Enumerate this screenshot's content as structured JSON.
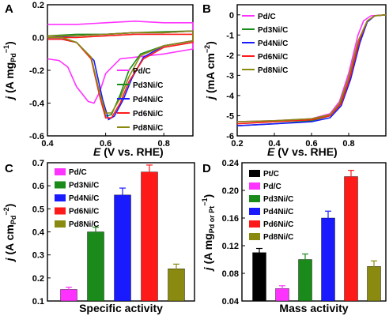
{
  "panels": {
    "a": "A",
    "b": "B",
    "c": "C",
    "d": "D"
  },
  "colors": {
    "Pt/C": "#000000",
    "Pd/C": "#ff33ff",
    "Pd3Ni/C": "#1a8a1a",
    "Pd4Ni/C": "#1a1aff",
    "Pd6Ni/C": "#ff1a1a",
    "Pd8Ni/C": "#8a8a10"
  },
  "chart_data": [
    {
      "id": "A",
      "type": "line",
      "xlabel": "E (V vs. RHE)",
      "ylabel": "j (A mg_Pd^-1)",
      "xlim": [
        0.4,
        0.9
      ],
      "ylim": [
        -0.6,
        0.2
      ],
      "xticks": [
        "0.4",
        "0.6",
        "0.8"
      ],
      "yticks": [
        "-0.6",
        "-0.4",
        "-0.2",
        "0.0",
        "0.2"
      ],
      "legend": [
        "Pd/C",
        "Pd3Ni/C",
        "Pd4Ni/C",
        "Pd6Ni/C",
        "Pd8Ni/C"
      ],
      "legend_position": "lower-right",
      "series": [
        {
          "name": "Pd/C",
          "forward": [
            [
              0.4,
              0.08
            ],
            [
              0.5,
              0.08
            ],
            [
              0.6,
              0.09
            ],
            [
              0.7,
              0.1
            ],
            [
              0.8,
              0.09
            ],
            [
              0.9,
              0.09
            ]
          ],
          "reverse": [
            [
              0.9,
              -0.07
            ],
            [
              0.8,
              -0.1
            ],
            [
              0.7,
              -0.12
            ],
            [
              0.65,
              -0.13
            ],
            [
              0.6,
              -0.22
            ],
            [
              0.58,
              -0.33
            ],
            [
              0.56,
              -0.4
            ],
            [
              0.54,
              -0.39
            ],
            [
              0.5,
              -0.3
            ],
            [
              0.47,
              -0.18
            ],
            [
              0.44,
              -0.14
            ],
            [
              0.4,
              -0.13
            ]
          ]
        },
        {
          "name": "Pd3Ni/C",
          "forward": [
            [
              0.4,
              0.01
            ],
            [
              0.5,
              0.02
            ],
            [
              0.6,
              0.02
            ],
            [
              0.7,
              0.03
            ],
            [
              0.8,
              0.035
            ],
            [
              0.9,
              0.04
            ]
          ],
          "reverse": [
            [
              0.9,
              -0.02
            ],
            [
              0.8,
              -0.05
            ],
            [
              0.72,
              -0.1
            ],
            [
              0.68,
              -0.2
            ],
            [
              0.65,
              -0.35
            ],
            [
              0.62,
              -0.47
            ],
            [
              0.6,
              -0.48
            ],
            [
              0.58,
              -0.35
            ],
            [
              0.55,
              -0.12
            ],
            [
              0.5,
              -0.03
            ],
            [
              0.45,
              0.0
            ],
            [
              0.4,
              0.0
            ]
          ]
        },
        {
          "name": "Pd4Ni/C",
          "forward": [
            [
              0.4,
              0.0
            ],
            [
              0.5,
              0.01
            ],
            [
              0.6,
              0.02
            ],
            [
              0.7,
              0.03
            ],
            [
              0.8,
              0.03
            ],
            [
              0.9,
              0.04
            ]
          ],
          "reverse": [
            [
              0.9,
              -0.02
            ],
            [
              0.8,
              -0.05
            ],
            [
              0.73,
              -0.12
            ],
            [
              0.69,
              -0.25
            ],
            [
              0.66,
              -0.38
            ],
            [
              0.63,
              -0.48
            ],
            [
              0.61,
              -0.5
            ],
            [
              0.59,
              -0.38
            ],
            [
              0.56,
              -0.14
            ],
            [
              0.5,
              -0.03
            ],
            [
              0.45,
              -0.01
            ],
            [
              0.4,
              -0.01
            ]
          ]
        },
        {
          "name": "Pd6Ni/C",
          "forward": [
            [
              0.4,
              0.0
            ],
            [
              0.5,
              0.0
            ],
            [
              0.6,
              0.01
            ],
            [
              0.7,
              0.02
            ],
            [
              0.8,
              0.02
            ],
            [
              0.9,
              0.02
            ]
          ],
          "reverse": [
            [
              0.9,
              -0.03
            ],
            [
              0.8,
              -0.06
            ],
            [
              0.73,
              -0.13
            ],
            [
              0.68,
              -0.27
            ],
            [
              0.65,
              -0.4
            ],
            [
              0.62,
              -0.49
            ],
            [
              0.6,
              -0.49
            ],
            [
              0.58,
              -0.36
            ],
            [
              0.55,
              -0.13
            ],
            [
              0.5,
              -0.03
            ],
            [
              0.45,
              -0.01
            ],
            [
              0.4,
              -0.01
            ]
          ]
        },
        {
          "name": "Pd8Ni/C",
          "forward": [
            [
              0.4,
              0.01
            ],
            [
              0.5,
              0.01
            ],
            [
              0.6,
              0.02
            ],
            [
              0.7,
              0.03
            ],
            [
              0.8,
              0.03
            ],
            [
              0.9,
              0.04
            ]
          ],
          "reverse": [
            [
              0.9,
              -0.02
            ],
            [
              0.8,
              -0.05
            ],
            [
              0.72,
              -0.11
            ],
            [
              0.68,
              -0.24
            ],
            [
              0.65,
              -0.37
            ],
            [
              0.62,
              -0.46
            ],
            [
              0.6,
              -0.46
            ],
            [
              0.58,
              -0.34
            ],
            [
              0.55,
              -0.12
            ],
            [
              0.5,
              -0.03
            ],
            [
              0.45,
              0.0
            ],
            [
              0.4,
              0.0
            ]
          ]
        }
      ]
    },
    {
      "id": "B",
      "type": "line",
      "xlabel": "E (V vs. RHE)",
      "ylabel": "j (mA cm^-2)",
      "xlim": [
        0.2,
        1.0
      ],
      "ylim": [
        -6,
        0.5
      ],
      "xticks": [
        "0.2",
        "0.4",
        "0.6",
        "0.8"
      ],
      "yticks": [
        "-6",
        "-5",
        "-4",
        "-3",
        "-2",
        "-1",
        "0"
      ],
      "legend": [
        "Pd/C",
        "Pd3Ni/C",
        "Pd4Ni/C",
        "Pd6Ni/C",
        "Pd8Ni/C"
      ],
      "legend_position": "top-left",
      "series": [
        {
          "name": "Pd/C",
          "points": [
            [
              0.2,
              -5.3
            ],
            [
              0.4,
              -5.25
            ],
            [
              0.6,
              -5.15
            ],
            [
              0.7,
              -4.9
            ],
            [
              0.75,
              -4.3
            ],
            [
              0.8,
              -2.9
            ],
            [
              0.85,
              -1.0
            ],
            [
              0.88,
              -0.3
            ],
            [
              0.92,
              -0.05
            ],
            [
              1.0,
              0.0
            ]
          ]
        },
        {
          "name": "Pd3Ni/C",
          "points": [
            [
              0.2,
              -5.5
            ],
            [
              0.4,
              -5.4
            ],
            [
              0.6,
              -5.25
            ],
            [
              0.7,
              -5.0
            ],
            [
              0.75,
              -4.5
            ],
            [
              0.8,
              -3.3
            ],
            [
              0.85,
              -1.5
            ],
            [
              0.9,
              -0.35
            ],
            [
              0.94,
              -0.05
            ],
            [
              1.0,
              0.0
            ]
          ]
        },
        {
          "name": "Pd4Ni/C",
          "points": [
            [
              0.2,
              -5.5
            ],
            [
              0.4,
              -5.4
            ],
            [
              0.6,
              -5.3
            ],
            [
              0.7,
              -5.1
            ],
            [
              0.76,
              -4.5
            ],
            [
              0.81,
              -3.2
            ],
            [
              0.86,
              -1.4
            ],
            [
              0.9,
              -0.35
            ],
            [
              0.94,
              -0.05
            ],
            [
              1.0,
              0.0
            ]
          ]
        },
        {
          "name": "Pd6Ni/C",
          "points": [
            [
              0.2,
              -5.4
            ],
            [
              0.4,
              -5.3
            ],
            [
              0.6,
              -5.2
            ],
            [
              0.7,
              -5.0
            ],
            [
              0.76,
              -4.4
            ],
            [
              0.81,
              -3.0
            ],
            [
              0.86,
              -1.2
            ],
            [
              0.9,
              -0.3
            ],
            [
              0.94,
              -0.05
            ],
            [
              1.0,
              0.0
            ]
          ]
        },
        {
          "name": "Pd8Ni/C",
          "points": [
            [
              0.2,
              -5.3
            ],
            [
              0.4,
              -5.25
            ],
            [
              0.6,
              -5.15
            ],
            [
              0.7,
              -4.95
            ],
            [
              0.75,
              -4.4
            ],
            [
              0.8,
              -3.1
            ],
            [
              0.85,
              -1.3
            ],
            [
              0.9,
              -0.3
            ],
            [
              0.94,
              -0.05
            ],
            [
              1.0,
              0.0
            ]
          ]
        }
      ]
    },
    {
      "id": "C",
      "type": "bar",
      "title": "Specific activity",
      "ylabel": "j (A cm_Pd^-2)",
      "ylim": [
        0.1,
        0.7
      ],
      "yticks": [
        "0.1",
        "0.2",
        "0.3",
        "0.4",
        "0.5",
        "0.6",
        "0.7"
      ],
      "categories": [
        "Pd/C",
        "Pd3Ni/C",
        "Pd4Ni/C",
        "Pd6Ni/C",
        "Pd8Ni/C"
      ],
      "values": [
        0.15,
        0.4,
        0.56,
        0.66,
        0.24
      ],
      "errors": [
        0.01,
        0.02,
        0.03,
        0.03,
        0.02
      ],
      "legend_position": "top-left"
    },
    {
      "id": "D",
      "type": "bar",
      "title": "Mass activity",
      "ylabel": "j (A mg_Pd or Pt^-1)",
      "ylim": [
        0.04,
        0.24
      ],
      "yticks": [
        "0.04",
        "0.08",
        "0.12",
        "0.16",
        "0.20",
        "0.24"
      ],
      "categories": [
        "Pt/C",
        "Pd/C",
        "Pd3Ni/C",
        "Pd4Ni/C",
        "Pd6Ni/C",
        "Pd8Ni/C"
      ],
      "values": [
        0.11,
        0.058,
        0.1,
        0.16,
        0.22,
        0.09
      ],
      "errors": [
        0.006,
        0.004,
        0.008,
        0.01,
        0.009,
        0.008
      ],
      "legend_position": "top-left"
    }
  ]
}
